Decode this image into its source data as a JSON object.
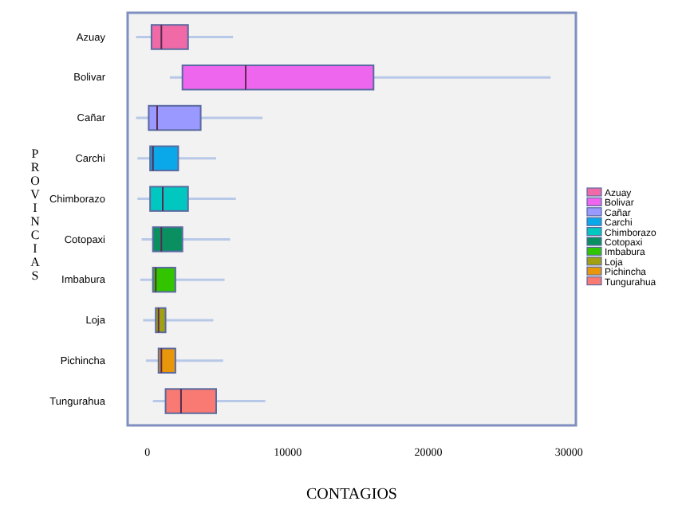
{
  "chart_data": {
    "type": "box",
    "orientation": "horizontal",
    "xlabel": "CONTAGIOS",
    "ylabel": "PROVINCIAS",
    "legend": "right",
    "categories": [
      "Azuay",
      "Bolivar",
      "Cañar",
      "Carchi",
      "Chimborazo",
      "Cotopaxi",
      "Imbabura",
      "Loja",
      "Pichincha",
      "Tungurahua"
    ],
    "series": [
      {
        "name": "Azuay",
        "color": "#f06aa8",
        "boxes": [
          {
            "low": -800,
            "q1": 300,
            "median": 1000,
            "q3": 2900,
            "high": 6100
          },
          null,
          null,
          null,
          null,
          null,
          null,
          null,
          null,
          null
        ]
      },
      {
        "name": "Bolivar",
        "color": "#ee66ee",
        "boxes": [
          null,
          {
            "low": 1600,
            "q1": 2500,
            "median": 7000,
            "q3": 16100,
            "high": 28700
          },
          null,
          null,
          null,
          null,
          null,
          null,
          null,
          null
        ]
      },
      {
        "name": "Cañar",
        "color": "#9999ff",
        "boxes": [
          null,
          null,
          {
            "low": -800,
            "q1": 100,
            "median": 700,
            "q3": 3800,
            "high": 8200
          },
          null,
          null,
          null,
          null,
          null,
          null,
          null
        ]
      },
      {
        "name": "Carchi",
        "color": "#0aa8e8",
        "boxes": [
          null,
          null,
          null,
          {
            "low": -700,
            "q1": 200,
            "median": 400,
            "q3": 2200,
            "high": 4900
          },
          null,
          null,
          null,
          null,
          null,
          null
        ]
      },
      {
        "name": "Chimborazo",
        "color": "#00c8c0",
        "boxes": [
          null,
          null,
          null,
          null,
          {
            "low": -700,
            "q1": 200,
            "median": 1100,
            "q3": 2900,
            "high": 6300
          },
          null,
          null,
          null,
          null,
          null
        ]
      },
      {
        "name": "Cotopaxi",
        "color": "#0a9060",
        "boxes": [
          null,
          null,
          null,
          null,
          null,
          {
            "low": -400,
            "q1": 400,
            "median": 1000,
            "q3": 2500,
            "high": 5900
          },
          null,
          null,
          null,
          null
        ]
      },
      {
        "name": "Imbabura",
        "color": "#33c400",
        "boxes": [
          null,
          null,
          null,
          null,
          null,
          null,
          {
            "low": -500,
            "q1": 400,
            "median": 600,
            "q3": 2000,
            "high": 5500
          },
          null,
          null,
          null
        ]
      },
      {
        "name": "Loja",
        "color": "#a0a010",
        "boxes": [
          null,
          null,
          null,
          null,
          null,
          null,
          null,
          {
            "low": -300,
            "q1": 600,
            "median": 800,
            "q3": 1300,
            "high": 4700
          },
          null,
          null
        ]
      },
      {
        "name": "Pichincha",
        "color": "#e8960a",
        "boxes": [
          null,
          null,
          null,
          null,
          null,
          null,
          null,
          null,
          {
            "low": -100,
            "q1": 800,
            "median": 1000,
            "q3": 2000,
            "high": 5400
          },
          null
        ]
      },
      {
        "name": "Tungurahua",
        "color": "#f87a72",
        "boxes": [
          null,
          null,
          null,
          null,
          null,
          null,
          null,
          null,
          null,
          {
            "low": 400,
            "q1": 1300,
            "median": 2400,
            "q3": 4900,
            "high": 8400
          }
        ]
      }
    ],
    "xlim": [
      -1400,
      30500
    ],
    "xticks": [
      0,
      10000,
      20000,
      30000
    ]
  }
}
